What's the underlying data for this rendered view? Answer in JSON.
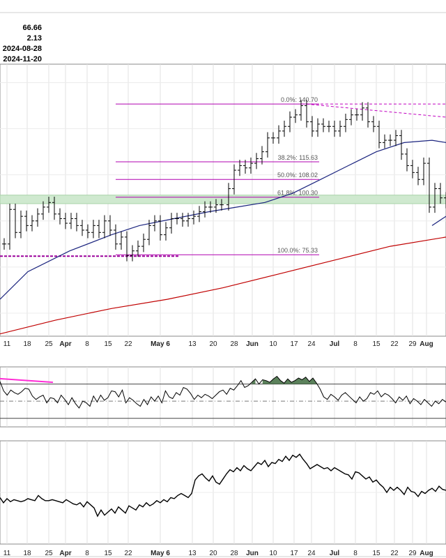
{
  "header": {
    "price": "66.66",
    "change": "2.13",
    "date1": "2024-08-28",
    "date2": "2024-11-20"
  },
  "chart_data": {
    "type": "bar",
    "x_ticks": [
      "11",
      "18",
      "25",
      "Apr",
      "8",
      "15",
      "22",
      "May 6",
      "13",
      "20",
      "28",
      "Jun",
      "10",
      "17",
      "24",
      "Jul",
      "8",
      "15",
      "22",
      "29",
      "Aug"
    ],
    "x_ticks_bold": [
      "Apr",
      "May 6",
      "Jun",
      "Jul",
      "Aug"
    ],
    "fibonacci": [
      {
        "label": "0.0%: 140.70",
        "value": 140.7
      },
      {
        "label": "38.2%: 115.63",
        "value": 115.63
      },
      {
        "label": "50.0%: 108.02",
        "value": 108.02
      },
      {
        "label": "61.8%: 100.30",
        "value": 100.3
      },
      {
        "label": "100.0%: 75.33",
        "value": 75.33
      }
    ],
    "support_zone": [
      97.5,
      101.2
    ],
    "ohlc_series": [
      [
        6,
        80
      ],
      [
        14,
        95
      ],
      [
        22,
        85
      ],
      [
        30,
        92
      ],
      [
        38,
        88
      ],
      [
        46,
        90
      ],
      [
        54,
        93
      ],
      [
        62,
        96
      ],
      [
        70,
        98
      ],
      [
        78,
        93
      ],
      [
        86,
        91
      ],
      [
        94,
        89
      ],
      [
        102,
        91
      ],
      [
        110,
        88
      ],
      [
        118,
        86
      ],
      [
        126,
        85
      ],
      [
        134,
        88
      ],
      [
        142,
        85
      ],
      [
        150,
        90
      ],
      [
        158,
        86
      ],
      [
        166,
        80
      ],
      [
        174,
        83
      ],
      [
        182,
        75
      ],
      [
        190,
        77
      ],
      [
        198,
        79
      ],
      [
        206,
        82
      ],
      [
        214,
        88
      ],
      [
        222,
        90
      ],
      [
        230,
        84
      ],
      [
        238,
        87
      ],
      [
        246,
        91
      ],
      [
        254,
        91
      ],
      [
        262,
        90
      ],
      [
        270,
        91
      ],
      [
        278,
        92
      ],
      [
        286,
        94
      ],
      [
        294,
        96
      ],
      [
        302,
        96
      ],
      [
        310,
        97
      ],
      [
        318,
        97
      ],
      [
        328,
        104
      ],
      [
        336,
        112
      ],
      [
        344,
        114
      ],
      [
        352,
        113
      ],
      [
        360,
        115
      ],
      [
        368,
        117
      ],
      [
        376,
        120
      ],
      [
        384,
        126
      ],
      [
        392,
        126
      ],
      [
        400,
        129
      ],
      [
        408,
        131
      ],
      [
        416,
        135
      ],
      [
        424,
        136
      ],
      [
        432,
        140
      ],
      [
        440,
        133
      ],
      [
        448,
        129
      ],
      [
        456,
        132
      ],
      [
        464,
        131
      ],
      [
        472,
        131
      ],
      [
        480,
        129
      ],
      [
        488,
        131
      ],
      [
        496,
        134
      ],
      [
        504,
        136
      ],
      [
        512,
        136
      ],
      [
        520,
        139
      ],
      [
        528,
        133
      ],
      [
        536,
        131
      ],
      [
        544,
        124
      ],
      [
        552,
        125
      ],
      [
        560,
        125
      ],
      [
        568,
        127
      ],
      [
        576,
        119
      ],
      [
        584,
        114
      ],
      [
        592,
        111
      ],
      [
        600,
        108
      ],
      [
        608,
        115
      ],
      [
        616,
        96
      ],
      [
        624,
        104
      ],
      [
        632,
        100
      ],
      [
        640,
        98
      ]
    ],
    "moving_average_50": [
      [
        0,
        56
      ],
      [
        40,
        68
      ],
      [
        100,
        77
      ],
      [
        160,
        84
      ],
      [
        200,
        88
      ],
      [
        250,
        91
      ],
      [
        300,
        94
      ],
      [
        340,
        96
      ],
      [
        380,
        98
      ],
      [
        420,
        102
      ],
      [
        460,
        108
      ],
      [
        500,
        114
      ],
      [
        540,
        120
      ],
      [
        580,
        124
      ],
      [
        620,
        125
      ],
      [
        640,
        124
      ]
    ],
    "moving_average_200": [
      [
        0,
        41
      ],
      [
        80,
        47
      ],
      [
        160,
        52
      ],
      [
        240,
        56
      ],
      [
        320,
        61
      ],
      [
        400,
        67
      ],
      [
        480,
        73
      ],
      [
        560,
        79
      ],
      [
        640,
        83
      ]
    ],
    "rsi": {
      "upper_level": 70,
      "mid_level": 50,
      "lower_level": 30,
      "ylim": [
        20,
        90
      ],
      "values": [
        73,
        62,
        57,
        63,
        60,
        58,
        61,
        65,
        64,
        56,
        52,
        55,
        57,
        48,
        54,
        53,
        48,
        57,
        52,
        46,
        54,
        47,
        42,
        50,
        48,
        44,
        56,
        49,
        57,
        51,
        54,
        62,
        61,
        55,
        63,
        48,
        54,
        51,
        47,
        44,
        52,
        46,
        55,
        50,
        56,
        48,
        62,
        55,
        53,
        60,
        57,
        66,
        64,
        59,
        52,
        57,
        54,
        58,
        56,
        53,
        57,
        61,
        63,
        58,
        65,
        63,
        68,
        74,
        66,
        68,
        72,
        76,
        70,
        75,
        74,
        72,
        76,
        79,
        74,
        71,
        76,
        72,
        74,
        77,
        75,
        78,
        73,
        77,
        71,
        64,
        55,
        52,
        58,
        55,
        51,
        57,
        60,
        56,
        52,
        48,
        55,
        50,
        53,
        60,
        58,
        62,
        55,
        59,
        57,
        53,
        48,
        55,
        51,
        56,
        47,
        53,
        50,
        46,
        52,
        48,
        44,
        50,
        47,
        52,
        49
      ]
    },
    "lower_indicator": {
      "ylim": [
        0,
        100
      ],
      "values": [
        45,
        40,
        44,
        41,
        43,
        42,
        41,
        42,
        44,
        43,
        42,
        47,
        44,
        42,
        42,
        43,
        42,
        41,
        40,
        43,
        41,
        39,
        38,
        40,
        36,
        41,
        38,
        35,
        27,
        33,
        28,
        31,
        34,
        30,
        36,
        33,
        30,
        37,
        35,
        33,
        38,
        36,
        40,
        37,
        39,
        42,
        40,
        43,
        41,
        45,
        44,
        47,
        49,
        47,
        45,
        49,
        62,
        66,
        68,
        64,
        61,
        66,
        60,
        58,
        63,
        68,
        72,
        70,
        74,
        71,
        76,
        73,
        71,
        75,
        79,
        77,
        81,
        75,
        79,
        78,
        82,
        80,
        85,
        81,
        86,
        84,
        87,
        82,
        78,
        73,
        75,
        77,
        75,
        73,
        74,
        71,
        74,
        72,
        70,
        68,
        67,
        63,
        70,
        69,
        66,
        63,
        65,
        60,
        62,
        58,
        55,
        50,
        55,
        52,
        55,
        52,
        48,
        55,
        51,
        50,
        46,
        51,
        49,
        52,
        54,
        51,
        56,
        53,
        52
      ]
    },
    "ylim": [
      40,
      158
    ],
    "annotations": []
  }
}
